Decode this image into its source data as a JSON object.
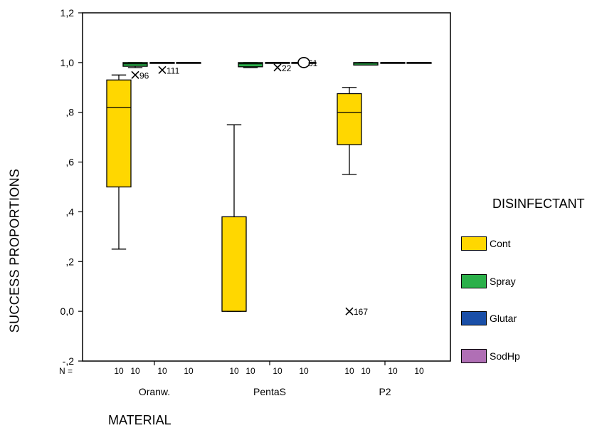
{
  "chart_data": {
    "type": "boxplot",
    "title": "",
    "xlabel": "MATERIAL",
    "ylabel": "SUCCESS PROPORTIONS",
    "ylim": [
      -0.2,
      1.2
    ],
    "yticks": [
      -0.2,
      0.0,
      0.2,
      0.4,
      0.6,
      0.8,
      1.0,
      1.2
    ],
    "ytick_labels": [
      "-,2",
      "0,0",
      ",2",
      ",4",
      ",6",
      ",8",
      "1,0",
      "1,2"
    ],
    "categories": [
      "Oranw.",
      "PentaS",
      "P2"
    ],
    "n_label": "N =",
    "legend": {
      "title": "DISINFECTANT",
      "position": "right",
      "items": [
        {
          "name": "Cont",
          "color": "#ffd700"
        },
        {
          "name": "Spray",
          "color": "#2bb04a"
        },
        {
          "name": "Glutar",
          "color": "#1a4fa8"
        },
        {
          "name": "SodHp",
          "color": "#b06fb5"
        }
      ]
    },
    "series": [
      {
        "name": "Cont",
        "boxes": [
          {
            "category": "Oranw.",
            "min": 0.25,
            "q1": 0.5,
            "median": 0.82,
            "q3": 0.93,
            "max": 0.95,
            "n": "10"
          },
          {
            "category": "PentaS",
            "min": 0.0,
            "q1": 0.0,
            "median": 0.0,
            "q3": 0.38,
            "max": 0.75,
            "n": "10"
          },
          {
            "category": "P2",
            "min": 0.55,
            "q1": 0.67,
            "median": 0.8,
            "q3": 0.875,
            "max": 0.9,
            "n": "10"
          }
        ]
      },
      {
        "name": "Spray",
        "boxes": [
          {
            "category": "Oranw.",
            "min": 0.98,
            "q1": 0.985,
            "median": 0.995,
            "q3": 1.0,
            "max": 1.0,
            "n": "10"
          },
          {
            "category": "PentaS",
            "min": 0.98,
            "q1": 0.983,
            "median": 0.995,
            "q3": 1.0,
            "max": 1.0,
            "n": "10"
          },
          {
            "category": "P2",
            "min": 0.99,
            "q1": 0.99,
            "median": 0.998,
            "q3": 1.0,
            "max": 1.0,
            "n": "10"
          }
        ]
      },
      {
        "name": "Glutar",
        "boxes": [
          {
            "category": "Oranw.",
            "min": 1.0,
            "q1": 1.0,
            "median": 1.0,
            "q3": 1.0,
            "max": 1.0,
            "n": "10"
          },
          {
            "category": "PentaS",
            "min": 1.0,
            "q1": 1.0,
            "median": 1.0,
            "q3": 1.0,
            "max": 1.0,
            "n": "10"
          },
          {
            "category": "P2",
            "min": 1.0,
            "q1": 1.0,
            "median": 1.0,
            "q3": 1.0,
            "max": 1.0,
            "n": "10"
          }
        ]
      },
      {
        "name": "SodHp",
        "boxes": [
          {
            "category": "Oranw.",
            "min": 1.0,
            "q1": 1.0,
            "median": 1.0,
            "q3": 1.0,
            "max": 1.0,
            "n": "10"
          },
          {
            "category": "PentaS",
            "min": 1.0,
            "q1": 1.0,
            "median": 1.0,
            "q3": 1.0,
            "max": 1.0,
            "n": "10"
          },
          {
            "category": "P2",
            "min": 1.0,
            "q1": 1.0,
            "median": 1.0,
            "q3": 1.0,
            "max": 1.0,
            "n": "10"
          }
        ]
      }
    ],
    "points": [
      {
        "category": "Oranw.",
        "series": "Spray",
        "value": 0.95,
        "label": "96",
        "marker": "star"
      },
      {
        "category": "Oranw.",
        "series": "Glutar",
        "value": 0.97,
        "label": "111",
        "marker": "star"
      },
      {
        "category": "PentaS",
        "series": "Glutar",
        "value": 0.98,
        "label": "22",
        "marker": "star"
      },
      {
        "category": "PentaS",
        "series": "SodHp",
        "value": 1.0,
        "label": "61",
        "marker": "circle"
      },
      {
        "category": "P2",
        "series": "Cont",
        "value": 0.0,
        "label": "167",
        "marker": "star"
      }
    ]
  }
}
